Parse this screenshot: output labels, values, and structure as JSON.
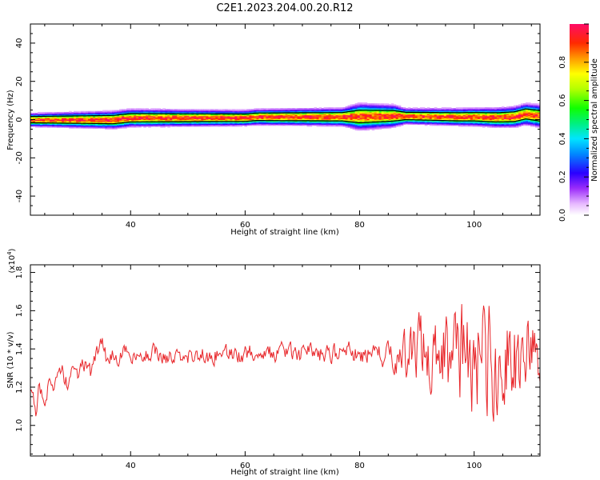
{
  "title": "C2E1.2023.204.00.20.R12",
  "chart_data": [
    {
      "type": "heatmap",
      "xlabel": "Height of straight line (km)",
      "ylabel": "Frequency (Hz)",
      "xlim": [
        22.5,
        111.5
      ],
      "ylim": [
        -50,
        50
      ],
      "xticks": [
        40,
        60,
        80,
        100
      ],
      "yticks": [
        -40,
        -20,
        0,
        20,
        40
      ],
      "colorbar": {
        "label": "Normalized spectral amplitude",
        "range": [
          0,
          1
        ],
        "ticks": [
          0.0,
          0.2,
          0.4,
          0.6,
          0.8
        ],
        "tick_labels": [
          "0.0",
          "0.2",
          "0.4",
          "0.6",
          "0.8"
        ]
      },
      "band_center_hz": [
        {
          "x": 23,
          "f": 0
        },
        {
          "x": 37,
          "f": 0
        },
        {
          "x": 40,
          "f": 1
        },
        {
          "x": 60,
          "f": 1
        },
        {
          "x": 62,
          "f": 1.5
        },
        {
          "x": 77,
          "f": 1.5
        },
        {
          "x": 86,
          "f": 2
        },
        {
          "x": 97,
          "f": 1.5
        },
        {
          "x": 100,
          "f": 1.5
        },
        {
          "x": 104,
          "f": 1.2
        },
        {
          "x": 107,
          "f": 1.5
        },
        {
          "x": 109,
          "f": 3
        },
        {
          "x": 111.5,
          "f": 2
        }
      ],
      "band_halfwidth_hz": [
        {
          "x": 23,
          "w": 3
        },
        {
          "x": 38,
          "w": 4
        },
        {
          "x": 60,
          "w": 3.5
        },
        {
          "x": 77,
          "w": 4
        },
        {
          "x": 80,
          "w": 6
        },
        {
          "x": 86,
          "w": 5
        },
        {
          "x": 88,
          "w": 3.5
        },
        {
          "x": 100,
          "w": 4
        },
        {
          "x": 111.5,
          "w": 5
        }
      ]
    },
    {
      "type": "line",
      "xlabel": "Height of straight line (km)",
      "ylabel": "SNR (10 * v/v)",
      "y_multiplier_base": "(x10",
      "y_multiplier_exp": "4",
      "y_multiplier_close": ")",
      "xlim": [
        22.5,
        111.5
      ],
      "ylim": [
        0.84,
        1.84
      ],
      "xticks": [
        40,
        60,
        80,
        100
      ],
      "yticks": [
        1.0,
        1.2,
        1.4,
        1.6,
        1.8
      ],
      "ytick_labels": [
        "1.0",
        "1.2",
        "1.4",
        "1.6",
        "1.8"
      ],
      "series": [
        {
          "color": "#e8262a",
          "points": [
            [
              22.5,
              1.2
            ],
            [
              23.5,
              1.04
            ],
            [
              24,
              1.22
            ],
            [
              25,
              1.16
            ],
            [
              26,
              1.24
            ],
            [
              27,
              1.2
            ],
            [
              28,
              1.28
            ],
            [
              29,
              1.22
            ],
            [
              30,
              1.3
            ],
            [
              31,
              1.26
            ],
            [
              32,
              1.33
            ],
            [
              33,
              1.28
            ],
            [
              34,
              1.36
            ],
            [
              35,
              1.44
            ],
            [
              36,
              1.32
            ],
            [
              37,
              1.38
            ],
            [
              38,
              1.34
            ],
            [
              39,
              1.4
            ],
            [
              40,
              1.34
            ],
            [
              42,
              1.36
            ],
            [
              44,
              1.38
            ],
            [
              46,
              1.36
            ],
            [
              48,
              1.35
            ],
            [
              50,
              1.36
            ],
            [
              52,
              1.37
            ],
            [
              54,
              1.36
            ],
            [
              56,
              1.38
            ],
            [
              58,
              1.36
            ],
            [
              60,
              1.38
            ],
            [
              62,
              1.37
            ],
            [
              64,
              1.38
            ],
            [
              66,
              1.39
            ],
            [
              68,
              1.38
            ],
            [
              70,
              1.37
            ],
            [
              72,
              1.38
            ],
            [
              74,
              1.37
            ],
            [
              76,
              1.38
            ],
            [
              78,
              1.38
            ],
            [
              80,
              1.37
            ],
            [
              82,
              1.36
            ],
            [
              84,
              1.35
            ],
            [
              86,
              1.36
            ],
            [
              88,
              1.37
            ],
            [
              90,
              1.38
            ],
            [
              92,
              1.38
            ],
            [
              94,
              1.39
            ],
            [
              96,
              1.38
            ],
            [
              98,
              1.37
            ],
            [
              100,
              1.36
            ],
            [
              102,
              1.36
            ],
            [
              104,
              1.36
            ],
            [
              106,
              1.35
            ],
            [
              108,
              1.34
            ],
            [
              110,
              1.36
            ],
            [
              111.5,
              1.34
            ]
          ],
          "noise_envelope": [
            [
              22.5,
              0.05
            ],
            [
              40,
              0.04
            ],
            [
              60,
              0.05
            ],
            [
              80,
              0.05
            ],
            [
              86,
              0.08
            ],
            [
              88,
              0.13
            ],
            [
              92,
              0.2
            ],
            [
              96,
              0.25
            ],
            [
              100,
              0.28
            ],
            [
              104,
              0.3
            ],
            [
              108,
              0.24
            ],
            [
              111.5,
              0.17
            ]
          ]
        }
      ]
    }
  ]
}
